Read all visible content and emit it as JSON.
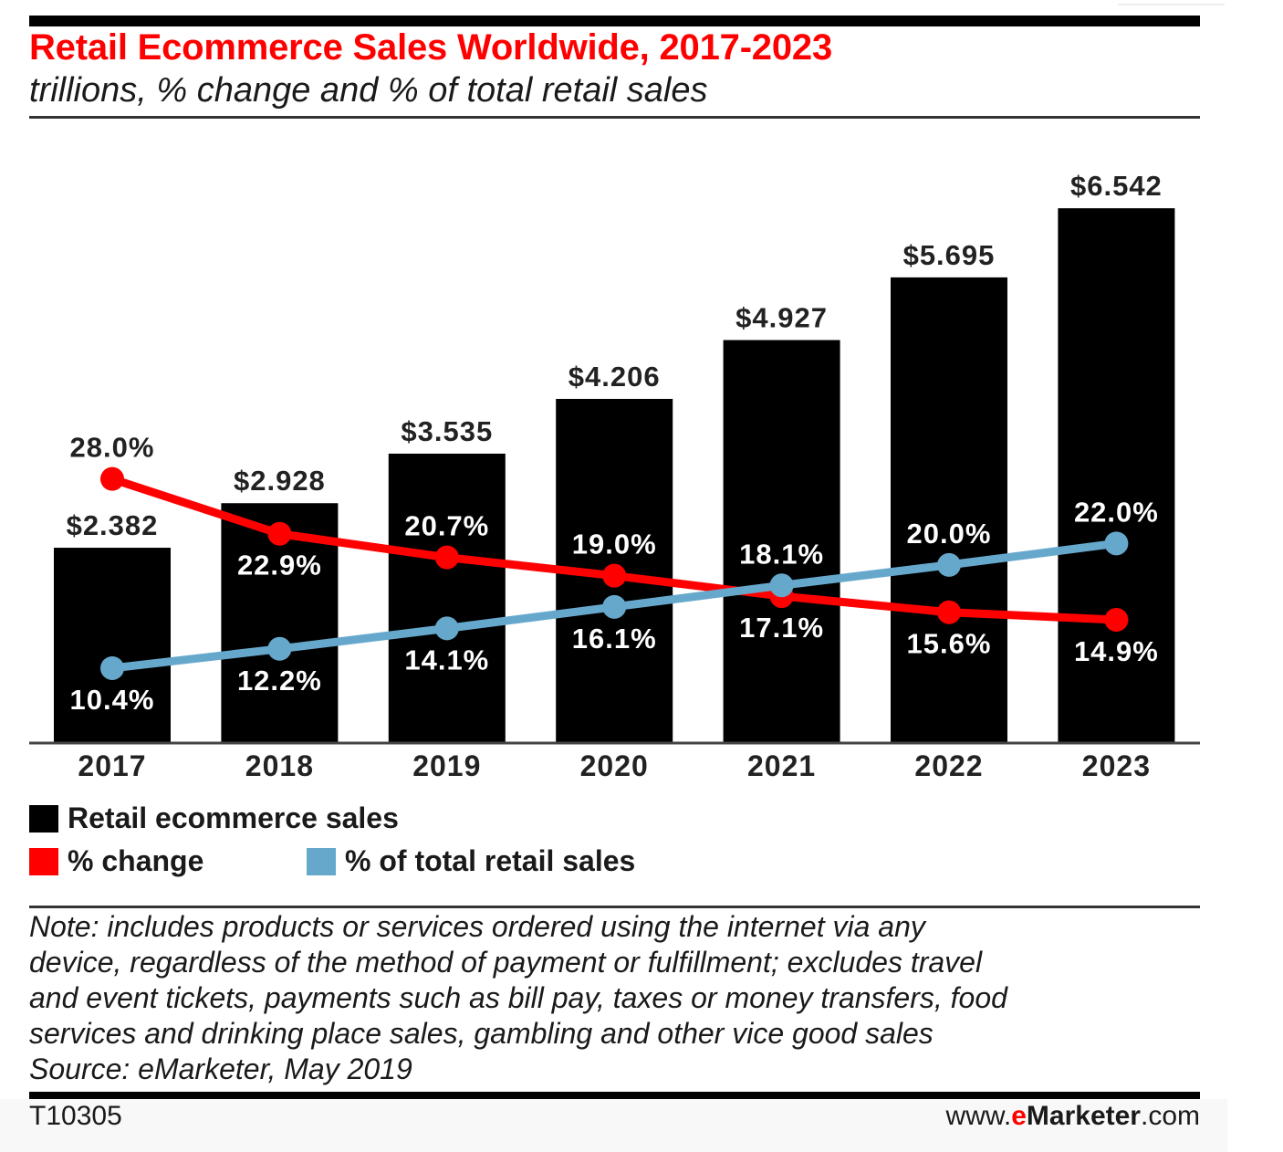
{
  "chart_data": {
    "type": "bar",
    "title": "Retail Ecommerce Sales Worldwide, 2017-2023",
    "subtitle": "trillions, % change and % of total retail sales",
    "categories": [
      "2017",
      "2018",
      "2019",
      "2020",
      "2021",
      "2022",
      "2023"
    ],
    "series": [
      {
        "name": "Retail ecommerce sales",
        "kind": "bar",
        "color": "#000000",
        "values": [
          2.382,
          2.928,
          3.535,
          4.206,
          4.927,
          5.695,
          6.542
        ],
        "labels": [
          "$2.382",
          "$2.928",
          "$3.535",
          "$4.206",
          "$4.927",
          "$5.695",
          "$6.542"
        ]
      },
      {
        "name": "% change",
        "kind": "line",
        "color": "#ff0000",
        "values": [
          28.0,
          22.9,
          20.7,
          19.0,
          17.1,
          15.6,
          14.9
        ],
        "labels": [
          "28.0%",
          "22.9%",
          "20.7%",
          "19.0%",
          "17.1%",
          "15.6%",
          "14.9%"
        ]
      },
      {
        "name": "% of total retail sales",
        "kind": "line",
        "color": "#66a8cc",
        "values": [
          10.4,
          12.2,
          14.1,
          16.1,
          18.1,
          20.0,
          22.0
        ],
        "labels": [
          "10.4%",
          "12.2%",
          "14.1%",
          "16.1%",
          "18.1%",
          "20.0%",
          "22.0%"
        ]
      }
    ],
    "xlabel": "",
    "ylabel": "",
    "ylim": [
      0,
      7
    ],
    "grid": false,
    "legend_position": "bottom-left"
  },
  "legend": {
    "items": [
      {
        "label": "Retail ecommerce sales",
        "color": "#000000"
      },
      {
        "label": "% change",
        "color": "#ff0000"
      },
      {
        "label": "% of total retail sales",
        "color": "#66a8cc"
      }
    ]
  },
  "note": {
    "lines": [
      "Note: includes products or services ordered using the internet via any",
      "device, regardless of the method of payment or fulfillment; excludes travel",
      "and event tickets, payments such as bill pay, taxes or money transfers, food",
      "services and drinking place sales, gambling and other vice good sales",
      "Source: eMarketer, May 2019"
    ]
  },
  "footer": {
    "code": "T10305",
    "site_prefix": "www.",
    "site_e": "e",
    "site_brand": "Marketer",
    "site_suffix": ".com"
  },
  "colors": {
    "title": "#ff0000",
    "bar": "#000000",
    "pct_change": "#ff0000",
    "pct_total": "#66a8cc"
  }
}
